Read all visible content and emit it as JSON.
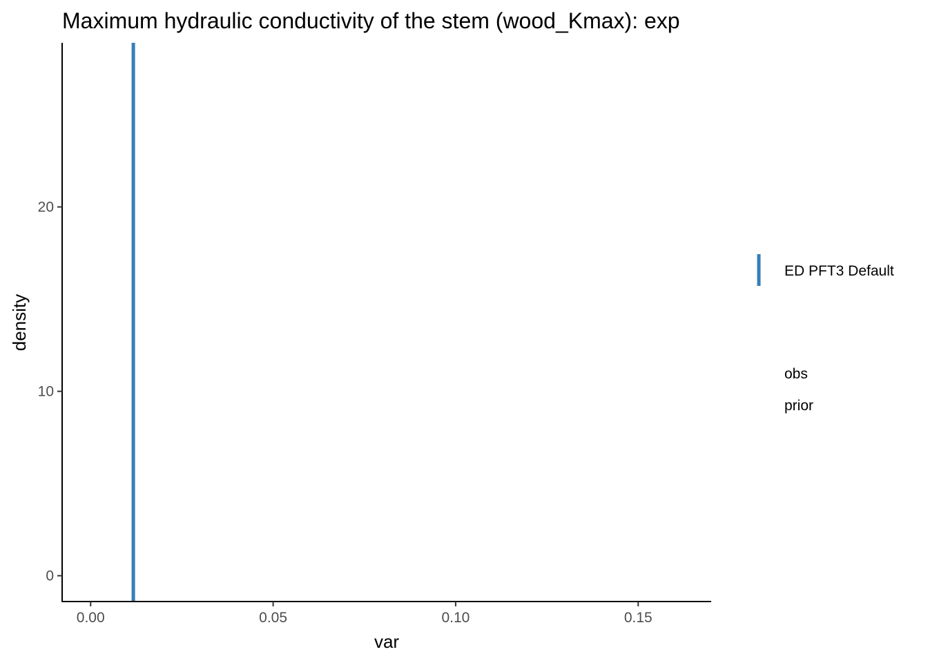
{
  "chart_data": {
    "type": "line",
    "title": "Maximum hydraulic conductivity of the stem (wood_Kmax): exp",
    "xlabel": "var",
    "ylabel": "density",
    "xlim": [
      -0.0078,
      0.17
    ],
    "ylim": [
      -1.4,
      28.9
    ],
    "x_ticks": [
      0.0,
      0.05,
      0.1,
      0.15
    ],
    "x_tick_labels": [
      "0.00",
      "0.05",
      "0.10",
      "0.15"
    ],
    "y_ticks": [
      0,
      10,
      20
    ],
    "y_tick_labels": [
      "0",
      "10",
      "20"
    ],
    "grid": false,
    "legend_position": "right",
    "series": [
      {
        "name": "ED PFT3 Default",
        "kind": "vline",
        "x": 0.0117,
        "color": "#377eb8"
      }
    ],
    "legend": [
      {
        "label": "ED PFT3 Default",
        "color": "#377eb8",
        "key": "vline"
      },
      {
        "label": "obs",
        "color": "",
        "key": "none"
      },
      {
        "label": "prior",
        "color": "",
        "key": "none"
      }
    ]
  }
}
